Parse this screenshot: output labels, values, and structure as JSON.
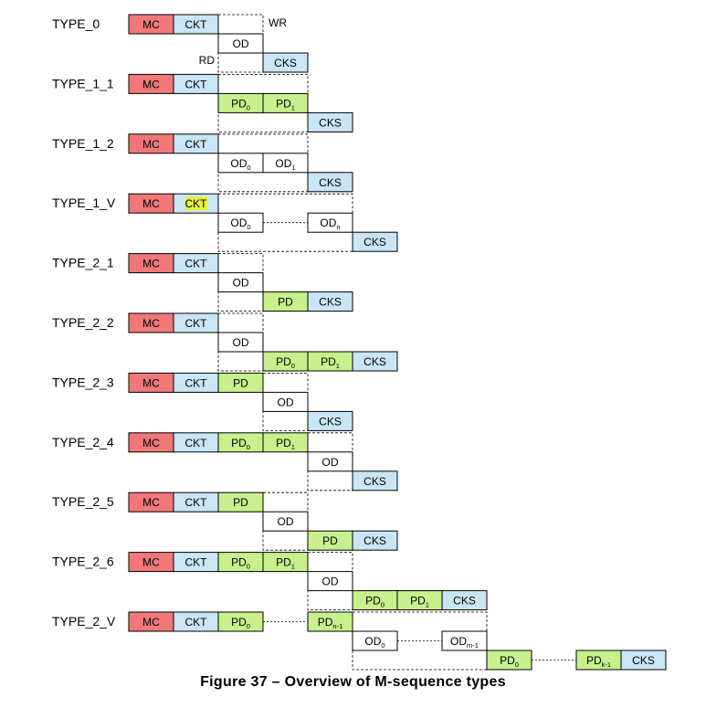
{
  "caption": "Figure 37 – Overview of M-sequence types",
  "colors": {
    "mc": "#f07878",
    "ckt": "#c9e6f5",
    "pd": "#c8f08c",
    "od": "#ffffff",
    "cks": "#c9e6f5",
    "highlight": "#e6f040"
  },
  "labels": {
    "wr": "WR",
    "rd": "RD"
  },
  "rows": [
    {
      "name": "TYPE_0",
      "cells": [
        {
          "k": "mc",
          "t": "MC",
          "row": 0
        },
        {
          "k": "ckt",
          "t": "CKT",
          "row": 0
        },
        {
          "k": "od",
          "t": "OD",
          "row": 1
        },
        {
          "k": "cks",
          "t": "CKS",
          "row": 2
        }
      ]
    },
    {
      "name": "TYPE_1_1",
      "cells": [
        {
          "k": "mc",
          "t": "MC",
          "row": 0
        },
        {
          "k": "ckt",
          "t": "CKT",
          "row": 0
        },
        {
          "k": "pd",
          "t": "PD",
          "s": "0",
          "row": 1
        },
        {
          "k": "pd",
          "t": "PD",
          "s": "1",
          "row": 1
        },
        {
          "k": "cks",
          "t": "CKS",
          "row": 2
        }
      ]
    },
    {
      "name": "TYPE_1_2",
      "cells": [
        {
          "k": "mc",
          "t": "MC",
          "row": 0
        },
        {
          "k": "ckt",
          "t": "CKT",
          "row": 0
        },
        {
          "k": "od",
          "t": "OD",
          "s": "0",
          "row": 1
        },
        {
          "k": "od",
          "t": "OD",
          "s": "1",
          "row": 1
        },
        {
          "k": "cks",
          "t": "CKS",
          "row": 2
        }
      ]
    },
    {
      "name": "TYPE_1_V",
      "cells": [
        {
          "k": "mc",
          "t": "MC",
          "row": 0
        },
        {
          "k": "ckt",
          "t": "CKT",
          "row": 0,
          "hl": true
        },
        {
          "k": "od",
          "t": "OD",
          "s": "0",
          "row": 1
        },
        {
          "k": "gap",
          "row": 1
        },
        {
          "k": "od",
          "t": "OD",
          "s": "n",
          "row": 1
        },
        {
          "k": "cks",
          "t": "CKS",
          "row": 2
        }
      ]
    },
    {
      "name": "TYPE_2_1",
      "cells": [
        {
          "k": "mc",
          "t": "MC",
          "row": 0
        },
        {
          "k": "ckt",
          "t": "CKT",
          "row": 0
        },
        {
          "k": "od",
          "t": "OD",
          "row": 1
        },
        {
          "k": "pd",
          "t": "PD",
          "row": 2
        },
        {
          "k": "cks",
          "t": "CKS",
          "row": 2
        }
      ]
    },
    {
      "name": "TYPE_2_2",
      "cells": [
        {
          "k": "mc",
          "t": "MC",
          "row": 0
        },
        {
          "k": "ckt",
          "t": "CKT",
          "row": 0
        },
        {
          "k": "od",
          "t": "OD",
          "row": 1
        },
        {
          "k": "pd",
          "t": "PD",
          "s": "0",
          "row": 2
        },
        {
          "k": "pd",
          "t": "PD",
          "s": "1",
          "row": 2
        },
        {
          "k": "cks",
          "t": "CKS",
          "row": 2
        }
      ]
    },
    {
      "name": "TYPE_2_3",
      "cells": [
        {
          "k": "mc",
          "t": "MC",
          "row": 0
        },
        {
          "k": "ckt",
          "t": "CKT",
          "row": 0
        },
        {
          "k": "pd",
          "t": "PD",
          "row": 0
        },
        {
          "k": "od",
          "t": "OD",
          "row": 1
        },
        {
          "k": "cks",
          "t": "CKS",
          "row": 2
        }
      ]
    },
    {
      "name": "TYPE_2_4",
      "cells": [
        {
          "k": "mc",
          "t": "MC",
          "row": 0
        },
        {
          "k": "ckt",
          "t": "CKT",
          "row": 0
        },
        {
          "k": "pd",
          "t": "PD",
          "s": "0",
          "row": 0
        },
        {
          "k": "pd",
          "t": "PD",
          "s": "1",
          "row": 0
        },
        {
          "k": "od",
          "t": "OD",
          "row": 1
        },
        {
          "k": "cks",
          "t": "CKS",
          "row": 2
        }
      ]
    },
    {
      "name": "TYPE_2_5",
      "cells": [
        {
          "k": "mc",
          "t": "MC",
          "row": 0
        },
        {
          "k": "ckt",
          "t": "CKT",
          "row": 0
        },
        {
          "k": "pd",
          "t": "PD",
          "row": 0
        },
        {
          "k": "od",
          "t": "OD",
          "row": 1
        },
        {
          "k": "pd",
          "t": "PD",
          "row": 2
        },
        {
          "k": "cks",
          "t": "CKS",
          "row": 2
        }
      ]
    },
    {
      "name": "TYPE_2_6",
      "cells": [
        {
          "k": "mc",
          "t": "MC",
          "row": 0
        },
        {
          "k": "ckt",
          "t": "CKT",
          "row": 0
        },
        {
          "k": "pd",
          "t": "PD",
          "s": "0",
          "row": 0
        },
        {
          "k": "pd",
          "t": "PD",
          "s": "1",
          "row": 0
        },
        {
          "k": "od",
          "t": "OD",
          "row": 1
        },
        {
          "k": "pd",
          "t": "PD",
          "s": "0",
          "row": 2
        },
        {
          "k": "pd",
          "t": "PD",
          "s": "1",
          "row": 2
        },
        {
          "k": "cks",
          "t": "CKS",
          "row": 2
        }
      ]
    },
    {
      "name": "TYPE_2_V",
      "cells": [
        {
          "k": "mc",
          "t": "MC",
          "row": 0
        },
        {
          "k": "ckt",
          "t": "CKT",
          "row": 0
        },
        {
          "k": "pd",
          "t": "PD",
          "s": "0",
          "row": 0
        },
        {
          "k": "gap",
          "row": 0
        },
        {
          "k": "pd",
          "t": "PD",
          "s": "n-1",
          "row": 0
        },
        {
          "k": "od",
          "t": "OD",
          "s": "0",
          "row": 1
        },
        {
          "k": "gap",
          "row": 1
        },
        {
          "k": "od",
          "t": "OD",
          "s": "m-1",
          "row": 1
        },
        {
          "k": "pd",
          "t": "PD",
          "s": "0",
          "row": 2
        },
        {
          "k": "gap",
          "row": 2
        },
        {
          "k": "pd",
          "t": "PD",
          "s": "k-1",
          "row": 2
        },
        {
          "k": "cks",
          "t": "CKS",
          "row": 2
        }
      ]
    }
  ]
}
